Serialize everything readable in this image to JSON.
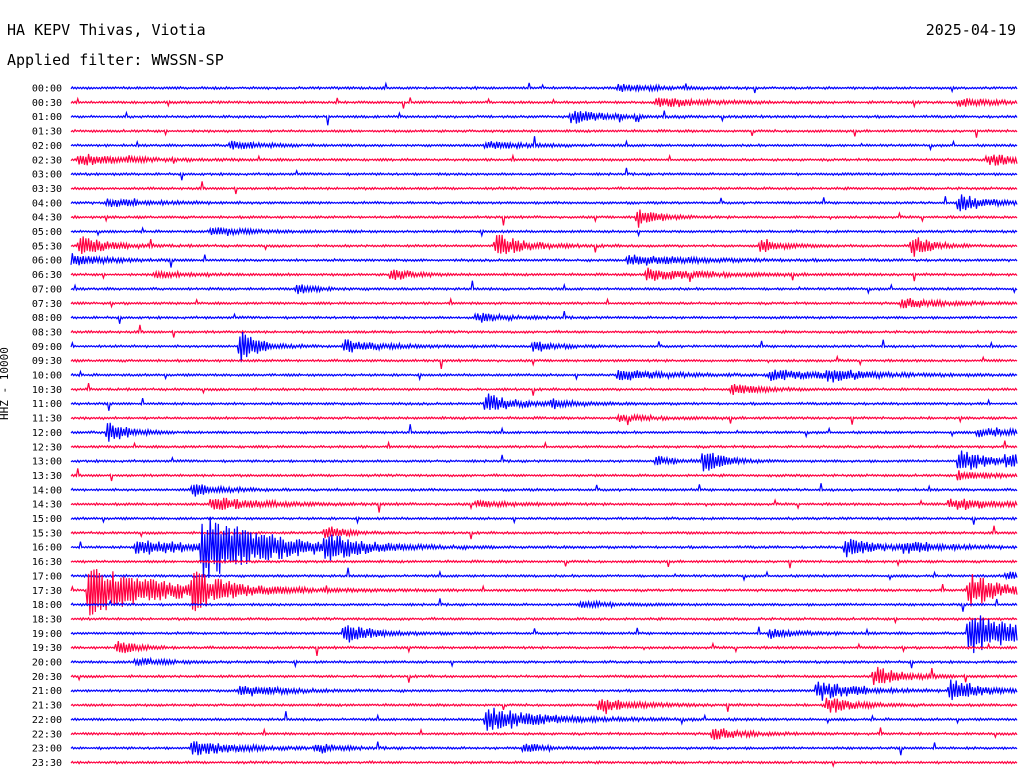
{
  "header": {
    "station": "HA KEPV Thivas, Viotia",
    "date": "2025-04-19",
    "filter": "Applied filter: WWSSN-SP"
  },
  "colors": {
    "odd_trace": "#0000ff",
    "even_trace": "#ff0040"
  },
  "chart_data": {
    "type": "helicorder",
    "y_axis_label": "HHZ - 10000",
    "row_labels": [
      "00:00",
      "00:30",
      "01:00",
      "01:30",
      "02:00",
      "02:30",
      "03:00",
      "03:30",
      "04:00",
      "04:30",
      "05:00",
      "05:30",
      "06:00",
      "06:30",
      "07:00",
      "07:30",
      "08:00",
      "08:30",
      "09:00",
      "09:30",
      "10:00",
      "10:30",
      "11:00",
      "11:30",
      "12:00",
      "12:30",
      "13:00",
      "13:30",
      "14:00",
      "14:30",
      "15:00",
      "15:30",
      "16:00",
      "16:30",
      "17:00",
      "17:30",
      "18:00",
      "18:30",
      "19:00",
      "19:30",
      "20:00",
      "20:30",
      "21:00",
      "21:30",
      "22:00",
      "22:30",
      "23:00",
      "23:30"
    ],
    "row_minutes": 30,
    "trace_colors": [
      "blue",
      "red"
    ],
    "events": [
      {
        "row": 0,
        "t": 0.58,
        "amp": 0.6,
        "dur": 0.04
      },
      {
        "row": 1,
        "t": 0.62,
        "amp": 0.7,
        "dur": 0.05
      },
      {
        "row": 1,
        "t": 0.94,
        "amp": 0.6,
        "dur": 0.04
      },
      {
        "row": 2,
        "t": 0.53,
        "amp": 1.0,
        "dur": 0.04
      },
      {
        "row": 4,
        "t": 0.17,
        "amp": 0.7,
        "dur": 0.03
      },
      {
        "row": 4,
        "t": 0.44,
        "amp": 0.6,
        "dur": 0.04
      },
      {
        "row": 5,
        "t": 0.01,
        "amp": 1.0,
        "dur": 0.05
      },
      {
        "row": 5,
        "t": 0.97,
        "amp": 0.9,
        "dur": 0.05
      },
      {
        "row": 8,
        "t": 0.04,
        "amp": 0.6,
        "dur": 0.05
      },
      {
        "row": 8,
        "t": 0.94,
        "amp": 1.4,
        "dur": 0.03
      },
      {
        "row": 9,
        "t": 0.6,
        "amp": 1.6,
        "dur": 0.02
      },
      {
        "row": 10,
        "t": 0.15,
        "amp": 0.6,
        "dur": 0.04
      },
      {
        "row": 11,
        "t": 0.01,
        "amp": 1.5,
        "dur": 0.03
      },
      {
        "row": 11,
        "t": 0.45,
        "amp": 2.0,
        "dur": 0.03
      },
      {
        "row": 11,
        "t": 0.73,
        "amp": 1.2,
        "dur": 0.02
      },
      {
        "row": 11,
        "t": 0.89,
        "amp": 1.8,
        "dur": 0.02
      },
      {
        "row": 12,
        "t": 0.0,
        "amp": 1.2,
        "dur": 0.03
      },
      {
        "row": 12,
        "t": 0.59,
        "amp": 1.0,
        "dur": 0.06
      },
      {
        "row": 13,
        "t": 0.09,
        "amp": 0.5,
        "dur": 0.04
      },
      {
        "row": 13,
        "t": 0.34,
        "amp": 1.1,
        "dur": 0.02
      },
      {
        "row": 13,
        "t": 0.61,
        "amp": 1.0,
        "dur": 0.06
      },
      {
        "row": 14,
        "t": 0.24,
        "amp": 0.8,
        "dur": 0.02
      },
      {
        "row": 15,
        "t": 0.88,
        "amp": 0.8,
        "dur": 0.04
      },
      {
        "row": 16,
        "t": 0.43,
        "amp": 0.8,
        "dur": 0.03
      },
      {
        "row": 18,
        "t": 0.18,
        "amp": 2.5,
        "dur": 0.02
      },
      {
        "row": 18,
        "t": 0.29,
        "amp": 1.0,
        "dur": 0.04
      },
      {
        "row": 18,
        "t": 0.49,
        "amp": 0.9,
        "dur": 0.02
      },
      {
        "row": 20,
        "t": 0.58,
        "amp": 0.9,
        "dur": 0.05
      },
      {
        "row": 20,
        "t": 0.74,
        "amp": 0.8,
        "dur": 0.08
      },
      {
        "row": 20,
        "t": 0.8,
        "amp": 0.8,
        "dur": 0.03
      },
      {
        "row": 21,
        "t": 0.7,
        "amp": 0.8,
        "dur": 0.03
      },
      {
        "row": 22,
        "t": 0.44,
        "amp": 1.6,
        "dur": 0.03
      },
      {
        "row": 22,
        "t": 0.51,
        "amp": 0.6,
        "dur": 0.03
      },
      {
        "row": 23,
        "t": 0.58,
        "amp": 0.5,
        "dur": 0.04
      },
      {
        "row": 24,
        "t": 0.04,
        "amp": 1.8,
        "dur": 0.02
      },
      {
        "row": 24,
        "t": 0.96,
        "amp": 0.7,
        "dur": 0.04
      },
      {
        "row": 26,
        "t": 0.62,
        "amp": 0.8,
        "dur": 0.02
      },
      {
        "row": 26,
        "t": 0.67,
        "amp": 1.8,
        "dur": 0.02
      },
      {
        "row": 26,
        "t": 0.94,
        "amp": 1.8,
        "dur": 0.03
      },
      {
        "row": 26,
        "t": 0.99,
        "amp": 1.0,
        "dur": 0.02
      },
      {
        "row": 27,
        "t": 0.94,
        "amp": 0.8,
        "dur": 0.03
      },
      {
        "row": 28,
        "t": 0.13,
        "amp": 1.0,
        "dur": 0.03
      },
      {
        "row": 29,
        "t": 0.15,
        "amp": 1.2,
        "dur": 0.05
      },
      {
        "row": 29,
        "t": 0.43,
        "amp": 0.5,
        "dur": 0.04
      },
      {
        "row": 29,
        "t": 0.93,
        "amp": 0.9,
        "dur": 0.05
      },
      {
        "row": 31,
        "t": 0.27,
        "amp": 1.2,
        "dur": 0.02
      },
      {
        "row": 32,
        "t": 0.07,
        "amp": 1.2,
        "dur": 0.08
      },
      {
        "row": 32,
        "t": 0.14,
        "amp": 5.0,
        "dur": 0.07
      },
      {
        "row": 32,
        "t": 0.27,
        "amp": 1.6,
        "dur": 0.03
      },
      {
        "row": 32,
        "t": 0.82,
        "amp": 1.6,
        "dur": 0.03
      },
      {
        "row": 32,
        "t": 0.88,
        "amp": 0.8,
        "dur": 0.05
      },
      {
        "row": 34,
        "t": 0.99,
        "amp": 0.6,
        "dur": 0.03
      },
      {
        "row": 35,
        "t": 0.02,
        "amp": 4.0,
        "dur": 0.08
      },
      {
        "row": 35,
        "t": 0.13,
        "amp": 2.5,
        "dur": 0.03
      },
      {
        "row": 35,
        "t": 0.95,
        "amp": 3.0,
        "dur": 0.03
      },
      {
        "row": 36,
        "t": 0.54,
        "amp": 0.6,
        "dur": 0.03
      },
      {
        "row": 38,
        "t": 0.29,
        "amp": 1.5,
        "dur": 0.03
      },
      {
        "row": 38,
        "t": 0.74,
        "amp": 0.7,
        "dur": 0.03
      },
      {
        "row": 38,
        "t": 0.95,
        "amp": 3.5,
        "dur": 0.05
      },
      {
        "row": 39,
        "t": 0.05,
        "amp": 1.2,
        "dur": 0.02
      },
      {
        "row": 40,
        "t": 0.07,
        "amp": 0.6,
        "dur": 0.03
      },
      {
        "row": 41,
        "t": 0.85,
        "amp": 1.5,
        "dur": 0.03
      },
      {
        "row": 42,
        "t": 0.18,
        "amp": 1.0,
        "dur": 0.04
      },
      {
        "row": 42,
        "t": 0.79,
        "amp": 1.6,
        "dur": 0.04
      },
      {
        "row": 42,
        "t": 0.93,
        "amp": 2.0,
        "dur": 0.03
      },
      {
        "row": 43,
        "t": 0.56,
        "amp": 1.0,
        "dur": 0.04
      },
      {
        "row": 43,
        "t": 0.8,
        "amp": 1.2,
        "dur": 0.03
      },
      {
        "row": 44,
        "t": 0.44,
        "amp": 2.0,
        "dur": 0.06
      },
      {
        "row": 45,
        "t": 0.68,
        "amp": 1.0,
        "dur": 0.03
      },
      {
        "row": 46,
        "t": 0.13,
        "amp": 1.2,
        "dur": 0.05
      },
      {
        "row": 46,
        "t": 0.26,
        "amp": 0.8,
        "dur": 0.02
      },
      {
        "row": 46,
        "t": 0.48,
        "amp": 0.9,
        "dur": 0.02
      }
    ]
  }
}
